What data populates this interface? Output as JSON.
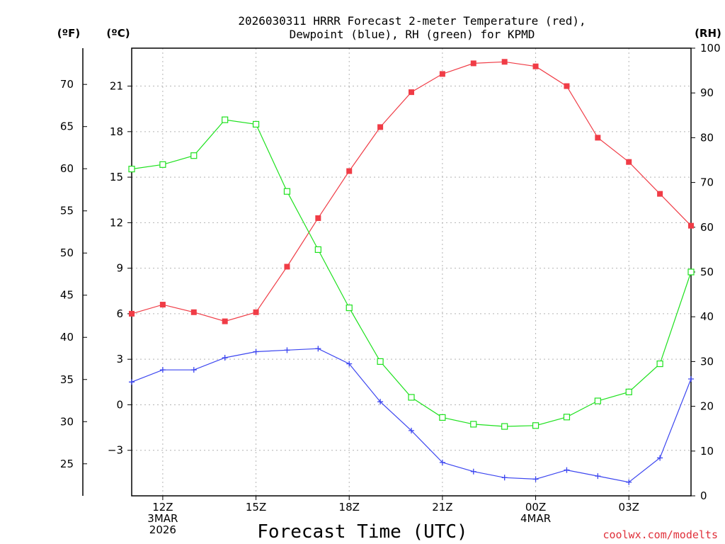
{
  "chart_data": {
    "type": "line",
    "title_line1": "2026030311 HRRR Forecast 2-meter Temperature (red),",
    "title_line2": "Dewpoint (blue), RH (green) for KPMD",
    "xlabel": "Forecast Time (UTC)",
    "credit": "coolwx.com/modelts",
    "unit_f": "(ºF)",
    "unit_c": "(ºC)",
    "unit_rh": "(RH)",
    "x": [
      11,
      12,
      13,
      14,
      15,
      16,
      17,
      18,
      19,
      20,
      21,
      22,
      23,
      24,
      25,
      26,
      27,
      28,
      29
    ],
    "xlim": [
      11,
      29
    ],
    "c_lim": [
      -6,
      23.5
    ],
    "rh_lim": [
      0,
      100
    ],
    "x_ticks": [
      {
        "x": 12,
        "lines": [
          "12Z",
          "3MAR",
          "2026"
        ]
      },
      {
        "x": 15,
        "lines": [
          "15Z"
        ]
      },
      {
        "x": 18,
        "lines": [
          "18Z"
        ]
      },
      {
        "x": 21,
        "lines": [
          "21Z"
        ]
      },
      {
        "x": 24,
        "lines": [
          "00Z",
          "4MAR"
        ]
      },
      {
        "x": 27,
        "lines": [
          "03Z"
        ]
      }
    ],
    "c_ticks": [
      -3,
      0,
      3,
      6,
      9,
      12,
      15,
      18,
      21
    ],
    "f_ticks": [
      25,
      30,
      35,
      40,
      45,
      50,
      55,
      60,
      65,
      70
    ],
    "rh_ticks": [
      0,
      10,
      20,
      30,
      40,
      50,
      60,
      70,
      80,
      90,
      100
    ],
    "series": [
      {
        "name": "Temperature",
        "axis": "c",
        "color": "#f03c46",
        "marker": "filled-square",
        "values": [
          6.0,
          6.6,
          6.1,
          5.5,
          6.1,
          9.1,
          12.3,
          15.4,
          18.3,
          20.6,
          21.8,
          22.5,
          22.6,
          22.3,
          21.0,
          17.6,
          16.0,
          13.9,
          11.8
        ]
      },
      {
        "name": "Dewpoint",
        "axis": "c",
        "color": "#3c46f0",
        "marker": "plus",
        "values": [
          1.5,
          2.3,
          2.3,
          3.1,
          3.5,
          3.6,
          3.7,
          2.7,
          0.2,
          -1.7,
          -3.8,
          -4.4,
          -4.8,
          -4.9,
          -4.3,
          -4.7,
          -5.1,
          -3.5,
          1.7
        ]
      },
      {
        "name": "RH",
        "axis": "rh",
        "color": "#1ee11e",
        "marker": "open-square",
        "values": [
          73,
          74,
          76,
          84,
          83,
          68,
          55,
          42,
          30,
          22,
          17.5,
          16,
          15.5,
          15.7,
          17.6,
          21.2,
          23.2,
          29.5,
          50
        ]
      }
    ]
  }
}
